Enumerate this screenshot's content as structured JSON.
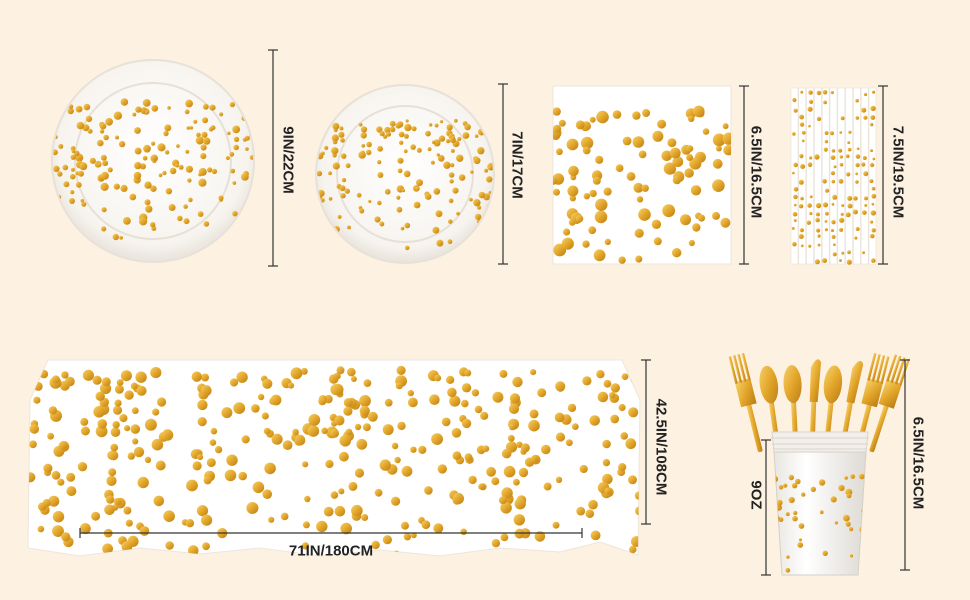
{
  "colors": {
    "background": "#fdf1e2",
    "gold": "#e8ac2a",
    "gold_dark": "#b9801a",
    "white": "#ffffff",
    "line": "#333333"
  },
  "items": [
    {
      "id": "large-plate",
      "size": "9IN/22CM"
    },
    {
      "id": "small-plate",
      "size": "7IN/17CM"
    },
    {
      "id": "napkin",
      "size": "6.5IN/16.5CM"
    },
    {
      "id": "straws",
      "size": "7.5IN/19.5CM"
    },
    {
      "id": "tablecloth-height",
      "size": "42.5IN/108CM"
    },
    {
      "id": "tablecloth-width",
      "size": "71IN/180CM"
    },
    {
      "id": "cup-capacity",
      "size": "9OZ"
    },
    {
      "id": "cup-cutlery-height",
      "size": "6.5IN/16.5CM"
    }
  ]
}
